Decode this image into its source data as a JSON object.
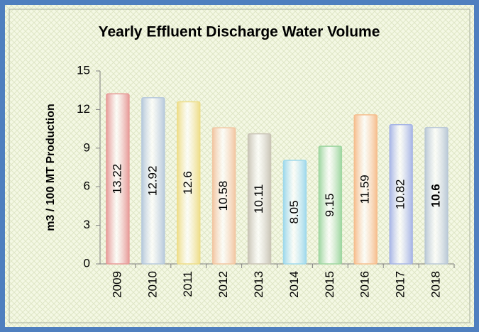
{
  "chart_data": {
    "type": "bar",
    "title": "Yearly Effluent Discharge Water Volume",
    "y_label": "m3 / 100 MT Production",
    "categories": [
      "2009",
      "2010",
      "2011",
      "2012",
      "2013",
      "2014",
      "2015",
      "2016",
      "2017",
      "2018"
    ],
    "values": [
      13.22,
      12.92,
      12.6,
      10.58,
      10.11,
      8.05,
      9.15,
      11.59,
      10.82,
      10.6
    ],
    "colors": [
      "#e79a98",
      "#b7c9dc",
      "#eedd88",
      "#f2c6a2",
      "#c9c4b6",
      "#9fd9ec",
      "#9ed6a0",
      "#f6be8e",
      "#a7b5e6",
      "#b9c8d6"
    ],
    "ylim": [
      0,
      15
    ],
    "yticks": [
      0,
      3,
      6,
      9,
      12,
      15
    ],
    "bold_value_index": 9
  }
}
